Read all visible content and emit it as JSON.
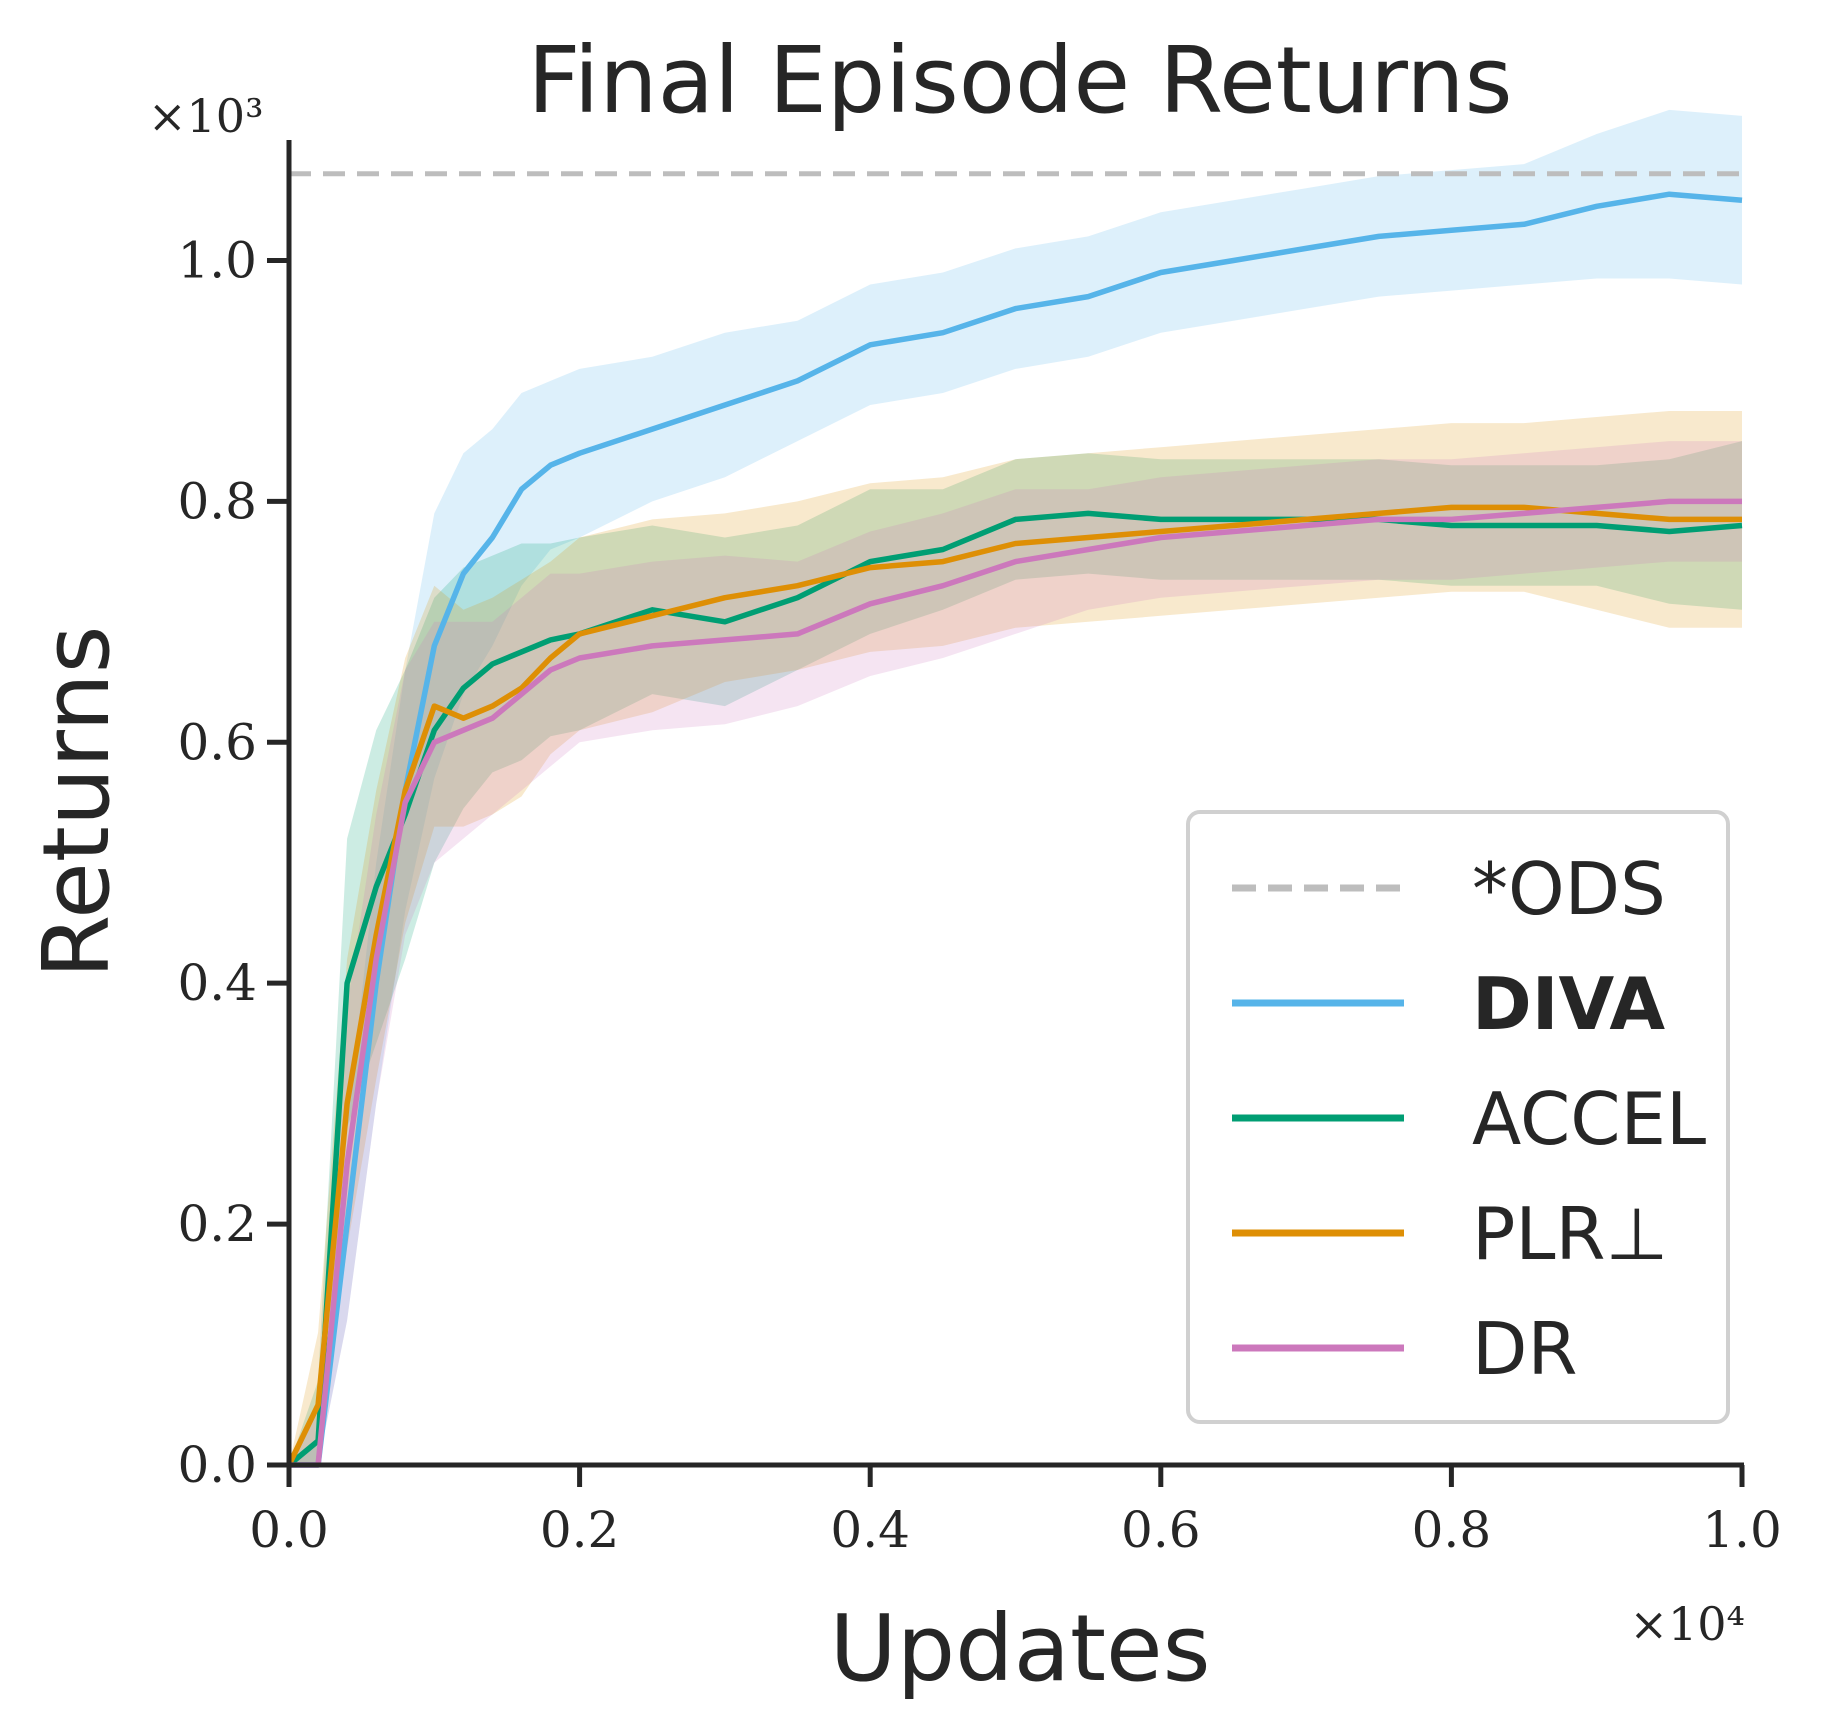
{
  "chart_data": {
    "type": "line",
    "title": "Final Episode Returns",
    "xlabel": "Updates",
    "ylabel": "Returns",
    "x_multiplier": "×10⁴",
    "y_multiplier": "×10³",
    "xlim": [
      0.0,
      1.0
    ],
    "ylim": [
      0.0,
      1.1
    ],
    "xticks": [
      "0.0",
      "0.2",
      "0.4",
      "0.6",
      "0.8",
      "1.0"
    ],
    "yticks": [
      "0.0",
      "0.2",
      "0.4",
      "0.6",
      "0.8",
      "1.0"
    ],
    "grid": false,
    "legend_position": "lower-right",
    "reference_line": {
      "name": "*ODS",
      "y": 1.072,
      "color": "#bdbdbd",
      "style": "dashed"
    },
    "x": [
      0.0,
      0.02,
      0.04,
      0.06,
      0.08,
      0.1,
      0.12,
      0.14,
      0.16,
      0.18,
      0.2,
      0.25,
      0.3,
      0.35,
      0.4,
      0.45,
      0.5,
      0.55,
      0.6,
      0.65,
      0.7,
      0.75,
      0.8,
      0.85,
      0.9,
      0.95,
      1.0
    ],
    "series": [
      {
        "name": "DIVA",
        "bold": true,
        "color": "#56b4e9",
        "values": [
          0.0,
          0.0,
          0.2,
          0.4,
          0.56,
          0.68,
          0.74,
          0.77,
          0.81,
          0.83,
          0.84,
          0.86,
          0.88,
          0.9,
          0.93,
          0.94,
          0.96,
          0.97,
          0.99,
          1.0,
          1.01,
          1.02,
          1.025,
          1.03,
          1.045,
          1.055,
          1.05
        ],
        "band": [
          0.0,
          0.02,
          0.08,
          0.1,
          0.1,
          0.11,
          0.1,
          0.09,
          0.08,
          0.07,
          0.07,
          0.06,
          0.06,
          0.05,
          0.05,
          0.05,
          0.05,
          0.05,
          0.05,
          0.05,
          0.05,
          0.05,
          0.05,
          0.05,
          0.06,
          0.07,
          0.07
        ]
      },
      {
        "name": "ACCEL",
        "color": "#009e73",
        "values": [
          0.0,
          0.02,
          0.4,
          0.48,
          0.54,
          0.61,
          0.645,
          0.665,
          0.675,
          0.685,
          0.69,
          0.71,
          0.7,
          0.72,
          0.75,
          0.76,
          0.785,
          0.79,
          0.785,
          0.785,
          0.785,
          0.785,
          0.78,
          0.78,
          0.78,
          0.775,
          0.78
        ],
        "band": [
          0.0,
          0.05,
          0.12,
          0.13,
          0.12,
          0.11,
          0.1,
          0.09,
          0.09,
          0.08,
          0.08,
          0.07,
          0.07,
          0.06,
          0.06,
          0.05,
          0.05,
          0.05,
          0.05,
          0.05,
          0.05,
          0.05,
          0.05,
          0.05,
          0.05,
          0.06,
          0.07
        ]
      },
      {
        "name": "PLR⊥",
        "color": "#de8f05",
        "values": [
          0.0,
          0.05,
          0.3,
          0.44,
          0.56,
          0.63,
          0.62,
          0.63,
          0.645,
          0.67,
          0.69,
          0.705,
          0.72,
          0.73,
          0.745,
          0.75,
          0.765,
          0.77,
          0.775,
          0.78,
          0.785,
          0.79,
          0.795,
          0.795,
          0.79,
          0.785,
          0.785
        ],
        "band": [
          0.0,
          0.06,
          0.12,
          0.12,
          0.11,
          0.1,
          0.09,
          0.09,
          0.09,
          0.08,
          0.08,
          0.08,
          0.07,
          0.07,
          0.07,
          0.07,
          0.07,
          0.07,
          0.07,
          0.07,
          0.07,
          0.07,
          0.07,
          0.07,
          0.08,
          0.09,
          0.09
        ]
      },
      {
        "name": "DR",
        "color": "#cc78bc",
        "values": [
          0.0,
          0.0,
          0.25,
          0.42,
          0.55,
          0.6,
          0.61,
          0.62,
          0.64,
          0.66,
          0.67,
          0.68,
          0.685,
          0.69,
          0.715,
          0.73,
          0.75,
          0.76,
          0.77,
          0.775,
          0.78,
          0.785,
          0.785,
          0.79,
          0.795,
          0.8,
          0.8
        ],
        "band": [
          0.0,
          0.05,
          0.13,
          0.12,
          0.11,
          0.1,
          0.09,
          0.08,
          0.08,
          0.08,
          0.07,
          0.07,
          0.07,
          0.06,
          0.06,
          0.06,
          0.06,
          0.05,
          0.05,
          0.05,
          0.05,
          0.05,
          0.05,
          0.05,
          0.05,
          0.05,
          0.05
        ]
      }
    ]
  }
}
